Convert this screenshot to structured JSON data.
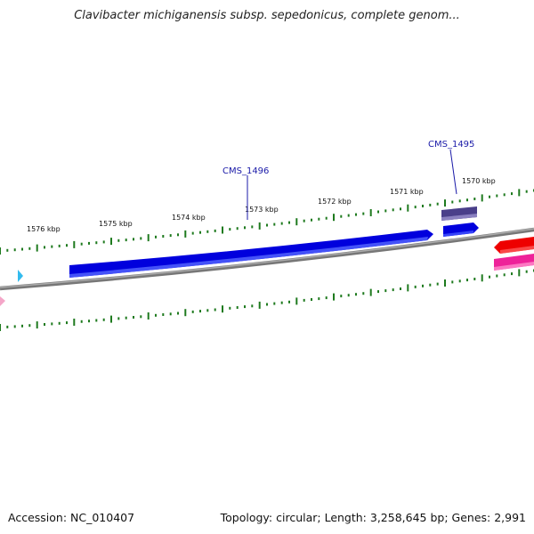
{
  "title": "Clavibacter michiganensis subsp. sepedonicus, complete genom...",
  "footer": {
    "accession": "Accession: NC_010407",
    "stats": "Topology: circular; Length: 3,258,645 bp; Genes: 2,991"
  },
  "ruler": {
    "labels": [
      "1576 kbp",
      "1575 kbp",
      "1574 kbp",
      "1573 kbp",
      "1572 kbp",
      "1571 kbp",
      "1570 kbp"
    ]
  },
  "genes": [
    {
      "name": "CMS_1496",
      "color": "#0000dd",
      "strand": "+"
    },
    {
      "name": "CMS_1495",
      "color": "#0000dd",
      "strand": "+"
    }
  ],
  "colors": {
    "backbone": "#777777",
    "ticks": "#1e7a1e",
    "gene_forward": "#0000dd",
    "gene_other": "#4a3f8a",
    "gene_red": "#ee0000",
    "gene_pink": "#ee2299",
    "marker_cyan": "#33bbee",
    "marker_pink": "#f4a6c8"
  }
}
